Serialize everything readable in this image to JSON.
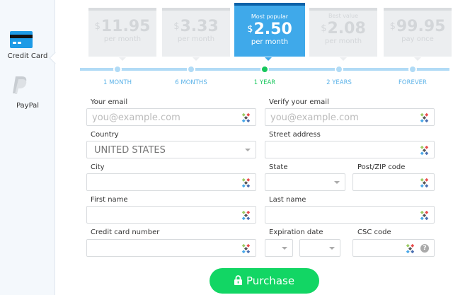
{
  "sidebar": {
    "items": [
      {
        "label": "Credit Card",
        "icon": "credit-card-icon",
        "active": true
      },
      {
        "label": "PayPal",
        "icon": "paypal-icon",
        "active": false
      }
    ]
  },
  "plans": [
    {
      "tag": "",
      "currency": "$",
      "price": "11.95",
      "period": "per month",
      "label": "1 MONTH"
    },
    {
      "tag": "",
      "currency": "$",
      "price": "3.33",
      "period": "per month",
      "label": "6 MONTHS"
    },
    {
      "tag": "Most popular",
      "currency": "$",
      "price": "2.50",
      "period": "per month",
      "label": "1 YEAR",
      "selected": true
    },
    {
      "tag": "Best value",
      "currency": "$",
      "price": "2.08",
      "period": "per month",
      "label": "2 YEARS"
    },
    {
      "tag": "",
      "currency": "$",
      "price": "99.95",
      "period": "pay once",
      "label": "FOREVER"
    }
  ],
  "form": {
    "email": {
      "label": "Your email",
      "placeholder": "you@example.com"
    },
    "verify_email": {
      "label": "Verify your email",
      "placeholder": "you@example.com"
    },
    "country": {
      "label": "Country",
      "value": "UNITED STATES"
    },
    "street": {
      "label": "Street address"
    },
    "city": {
      "label": "City"
    },
    "state": {
      "label": "State"
    },
    "zip": {
      "label": "Post/ZIP code"
    },
    "first_name": {
      "label": "First name"
    },
    "last_name": {
      "label": "Last name"
    },
    "card_number": {
      "label": "Credit card number"
    },
    "expiration": {
      "label": "Expiration date"
    },
    "csc": {
      "label": "CSC code",
      "help": "?"
    }
  },
  "purchase": {
    "label": "Purchase",
    "icon": "lock-icon"
  },
  "colors": {
    "accent": "#3fa9ea",
    "selected": "#17c75c",
    "button": "#12d664"
  }
}
